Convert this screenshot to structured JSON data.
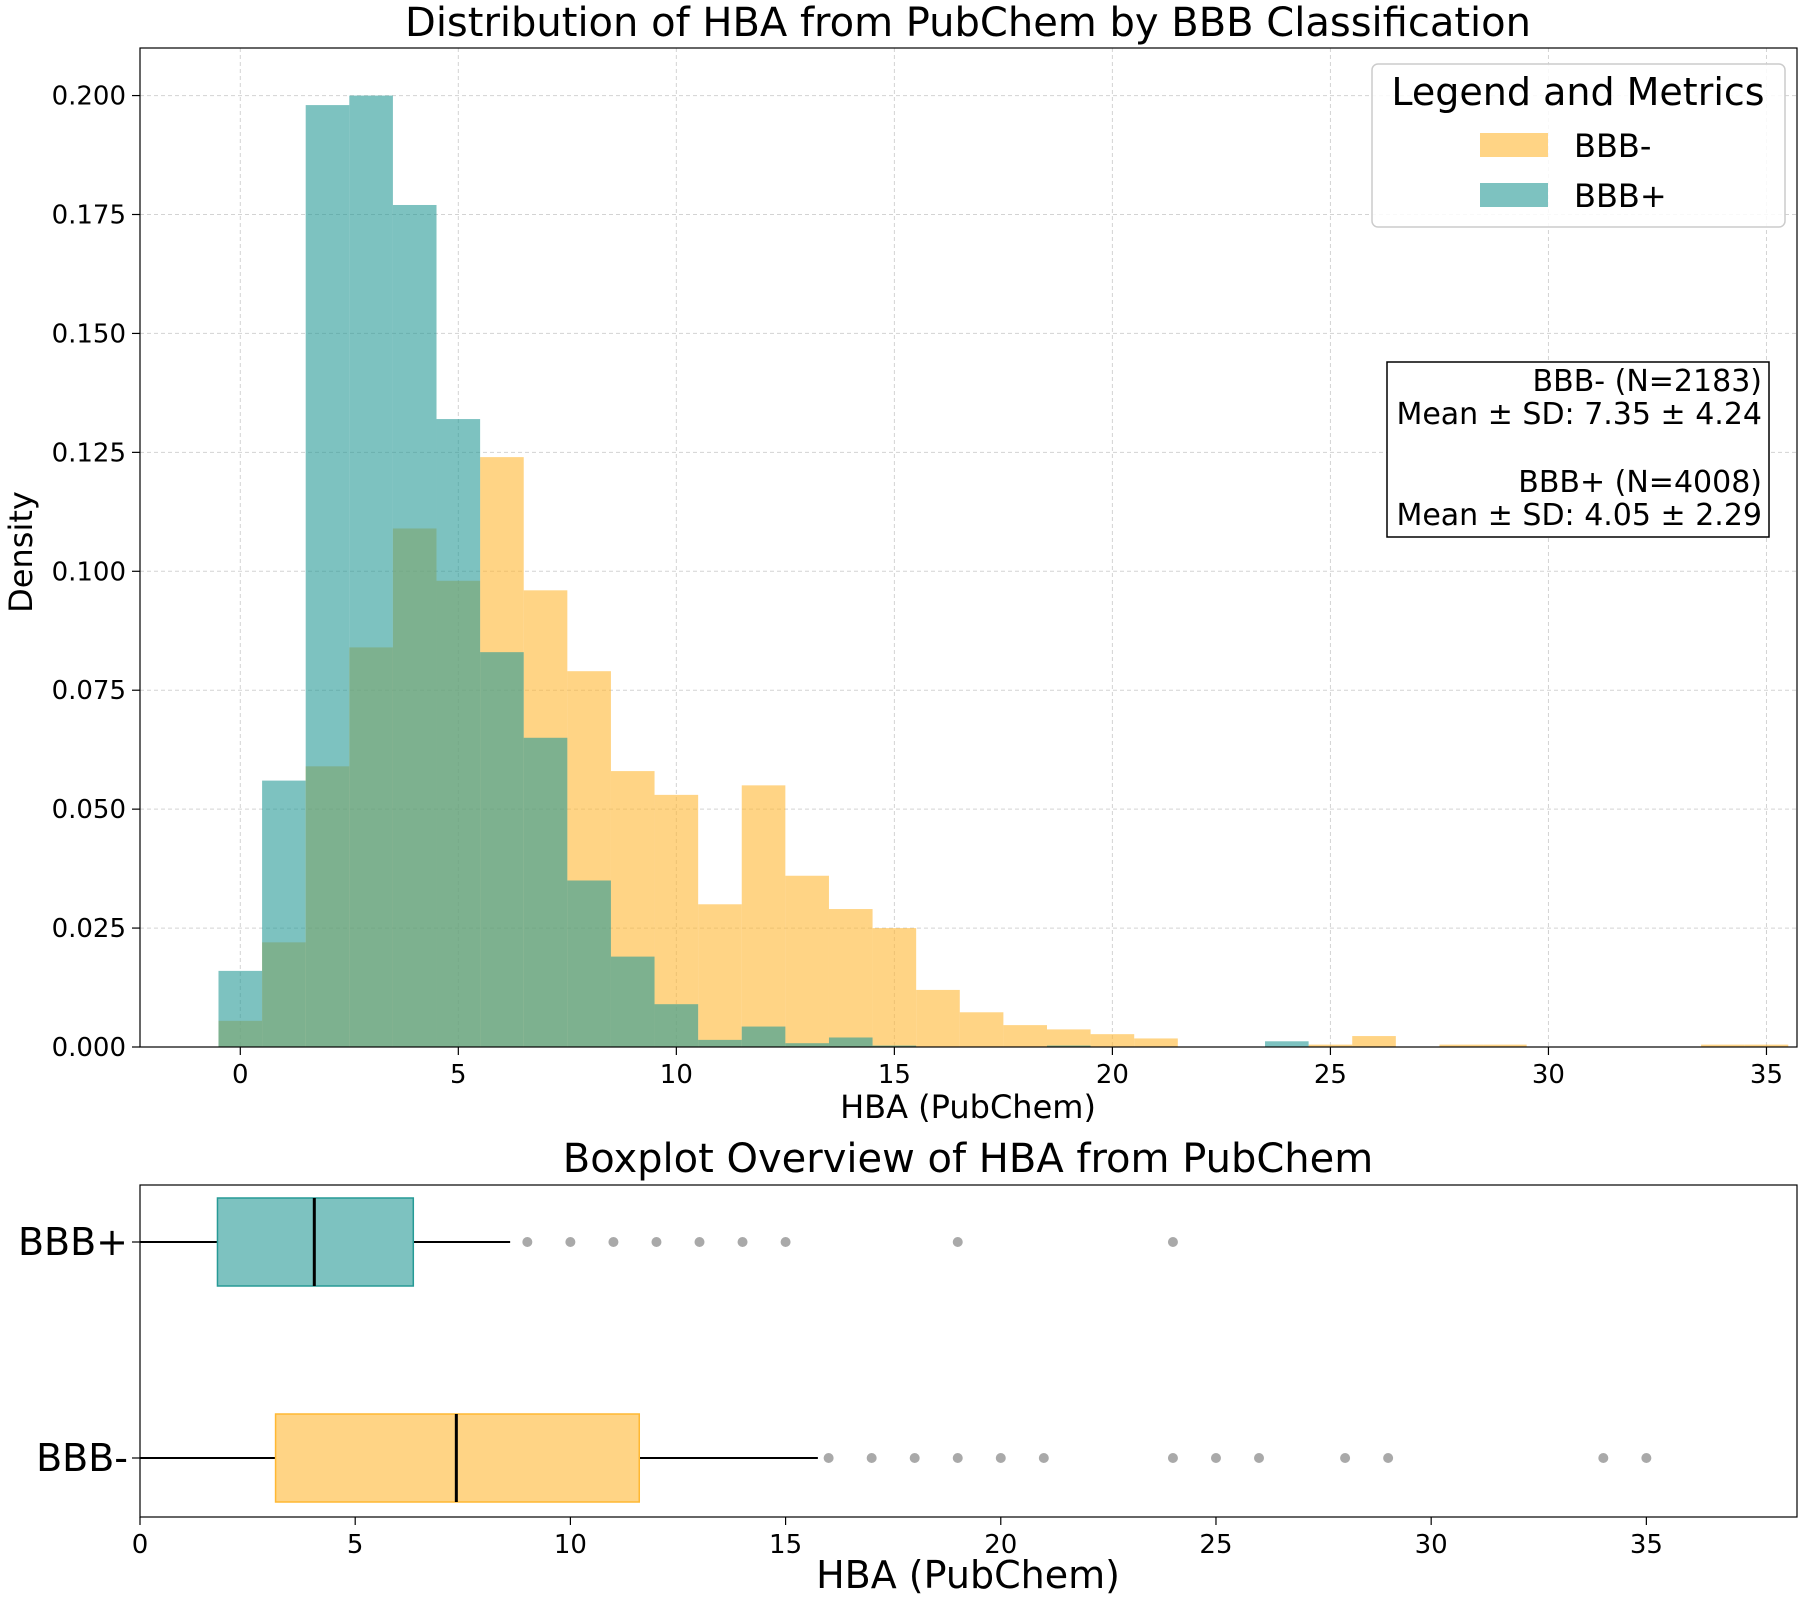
{
  "colors": {
    "bbb_minus": "#FFB833",
    "bbb_plus": "#279A96",
    "overlap": "#7CA67C",
    "grid": "#d3d3d3",
    "flier": "#707070"
  },
  "legend": {
    "title": "Legend and Metrics",
    "entries": [
      "BBB-",
      "BBB+"
    ],
    "placement": "top-right"
  },
  "metrics": {
    "lines": [
      "BBB- (N=2183)",
      "Mean ± SD: 7.35 ± 4.24",
      "",
      "BBB+ (N=4008)",
      "Mean ± SD: 4.05 ± 2.29"
    ]
  },
  "chart_data": [
    {
      "type": "bar",
      "subtype": "overlaid-histogram",
      "title": "Distribution of HBA from PubChem by BBB Classification",
      "xlabel": "HBA (PubChem)",
      "ylabel": "Density",
      "xlim": [
        -2.3,
        35.7
      ],
      "ylim": [
        0,
        0.21
      ],
      "grid": true,
      "bin_width": 1,
      "xticks": [
        0,
        5,
        10,
        15,
        20,
        25,
        30,
        35
      ],
      "yticks": [
        "0.000",
        "0.025",
        "0.050",
        "0.075",
        "0.100",
        "0.125",
        "0.150",
        "0.175",
        "0.200"
      ],
      "bin_centers": [
        0,
        1,
        2,
        3,
        4,
        5,
        6,
        7,
        8,
        9,
        10,
        11,
        12,
        13,
        14,
        15,
        16,
        17,
        18,
        19,
        20,
        21,
        22,
        23,
        24,
        25,
        26,
        27,
        28,
        29,
        30,
        31,
        32,
        33,
        34,
        35
      ],
      "series": [
        {
          "name": "BBB-",
          "color": "#FFB833",
          "values": [
            0.0055,
            0.022,
            0.059,
            0.084,
            0.109,
            0.098,
            0.124,
            0.096,
            0.079,
            0.058,
            0.053,
            0.03,
            0.055,
            0.036,
            0.029,
            0.025,
            0.012,
            0.0073,
            0.0046,
            0.0037,
            0.0027,
            0.0018,
            0,
            0,
            0,
            0.0005,
            0.0023,
            0,
            0.0005,
            0.0005,
            0,
            0,
            0,
            0,
            0.0005,
            0.0005
          ]
        },
        {
          "name": "BBB+",
          "color": "#279A96",
          "values": [
            0.016,
            0.056,
            0.198,
            0.2,
            0.177,
            0.132,
            0.083,
            0.065,
            0.035,
            0.019,
            0.009,
            0.0015,
            0.0043,
            0.0008,
            0.002,
            0.0003,
            0,
            0,
            0,
            0.0003,
            0,
            0,
            0,
            0,
            0.0012,
            0,
            0,
            0,
            0,
            0,
            0,
            0,
            0,
            0,
            0,
            0
          ]
        }
      ]
    },
    {
      "type": "boxplot",
      "title": "Boxplot Overview of HBA from PubChem",
      "xlabel": "HBA (PubChem)",
      "xlim": [
        0,
        38.5
      ],
      "xticks": [
        0,
        5,
        10,
        15,
        20,
        25,
        30,
        35
      ],
      "categories": [
        "BBB+",
        "BBB-"
      ],
      "series": [
        {
          "name": "BBB+",
          "color": "#279A96",
          "q1": 1.8,
          "median": 4.05,
          "q3": 6.35,
          "whisker_low": 0,
          "whisker_high": 8.6,
          "outliers": [
            9,
            10,
            11,
            12,
            13,
            14,
            15,
            19,
            24
          ]
        },
        {
          "name": "BBB-",
          "color": "#FFB833",
          "q1": 3.15,
          "median": 7.35,
          "q3": 11.6,
          "whisker_low": 0,
          "whisker_high": 15.75,
          "outliers": [
            16,
            17,
            18,
            19,
            20,
            21,
            24,
            25,
            26,
            28,
            29,
            34,
            35
          ]
        }
      ]
    }
  ]
}
